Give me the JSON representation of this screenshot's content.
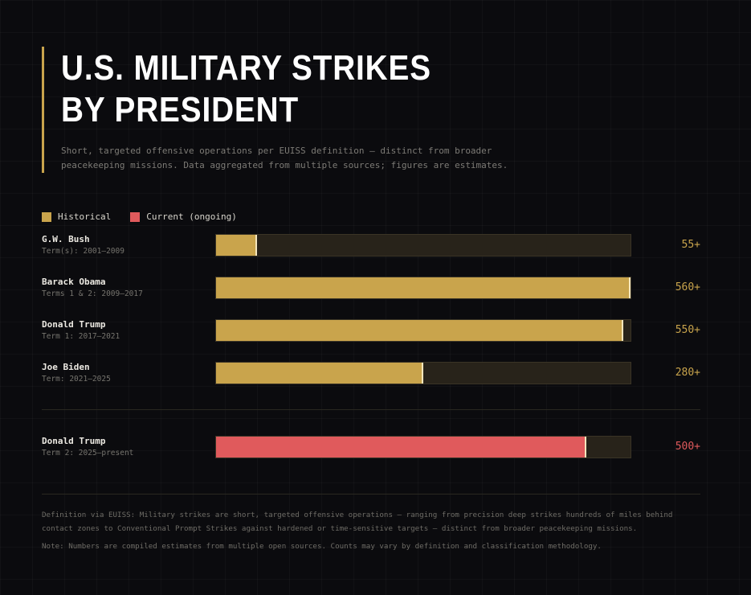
{
  "colors": {
    "historical": "#c9a44c",
    "current": "#e05a5c",
    "track": "#28231a",
    "cap": "#f5e6bd"
  },
  "header": {
    "title_line1": "U.S. MILITARY STRIKES",
    "title_line2": "BY PRESIDENT",
    "subtitle": "Short, targeted offensive operations per EUISS definition — distinct from broader peacekeeping missions. Data aggregated from multiple sources; figures are estimates."
  },
  "legend": {
    "historical": "Historical",
    "current": "Current (ongoing)"
  },
  "chart_data": {
    "type": "bar",
    "orientation": "horizontal",
    "title": "U.S. MILITARY STRIKES BY PRESIDENT",
    "xlim": [
      0,
      560
    ],
    "categories": [
      "G.W. Bush",
      "Barack Obama",
      "Donald Trump",
      "Joe Biden",
      "Donald Trump"
    ],
    "series": [
      {
        "name": "Historical",
        "values": [
          55,
          560,
          550,
          280,
          null
        ]
      },
      {
        "name": "Current (ongoing)",
        "values": [
          null,
          null,
          null,
          null,
          500
        ]
      }
    ],
    "bars": [
      {
        "president": "G.W. Bush",
        "term": "Term(s): 2001–2009",
        "value": 55,
        "label": "55+",
        "series": "historical"
      },
      {
        "president": "Barack Obama",
        "term": "Terms 1 & 2: 2009–2017",
        "value": 560,
        "label": "560+",
        "series": "historical"
      },
      {
        "president": "Donald Trump",
        "term": "Term 1: 2017–2021",
        "value": 550,
        "label": "550+",
        "series": "historical"
      },
      {
        "president": "Joe Biden",
        "term": "Term: 2021–2025",
        "value": 280,
        "label": "280+",
        "series": "historical"
      },
      {
        "president": "Donald Trump",
        "term": "Term 2: 2025–present",
        "value": 500,
        "label": "500+",
        "series": "current"
      }
    ]
  },
  "footer": {
    "definition": "Definition via EUISS: Military strikes are short, targeted offensive operations — ranging from precision deep strikes hundreds of miles behind contact zones to Conventional Prompt Strikes against hardened or time-sensitive targets — distinct from broader peacekeeping missions.",
    "note": "Note: Numbers are compiled estimates from multiple open sources. Counts may vary by definition and classification methodology."
  }
}
